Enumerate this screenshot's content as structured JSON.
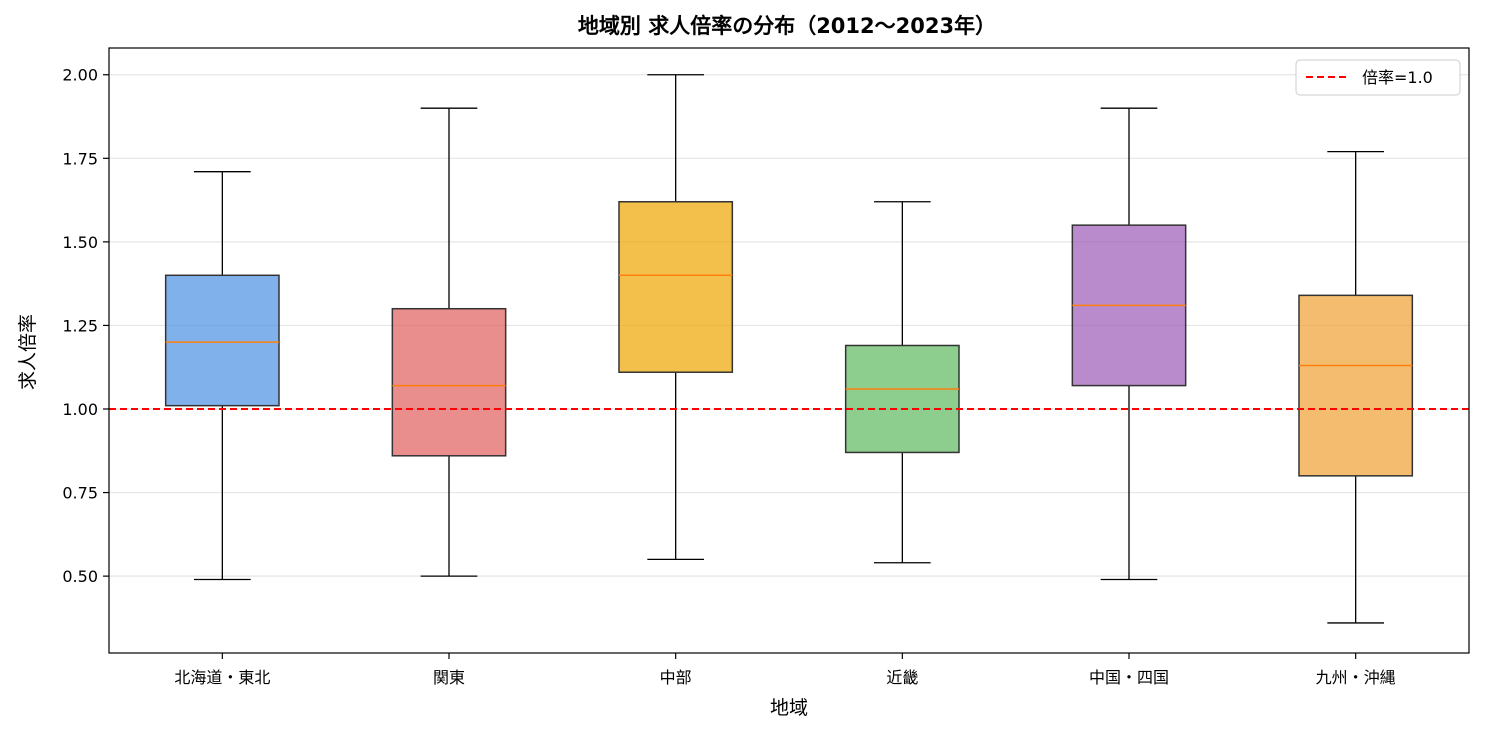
{
  "chart_data": {
    "type": "box",
    "title": "地域別 求人倍率の分布（2012〜2023年）",
    "xlabel": "地域",
    "ylabel": "求人倍率",
    "ylim": [
      0.27,
      2.08
    ],
    "yticks": [
      0.5,
      0.75,
      1.0,
      1.25,
      1.5,
      1.75,
      2.0
    ],
    "ytick_labels": [
      "0.50",
      "0.75",
      "1.00",
      "1.25",
      "1.50",
      "1.75",
      "2.00"
    ],
    "grid": "y",
    "legend_position": "top-right",
    "median_color": "#ff7f0e",
    "categories": [
      "北海道・東北",
      "関東",
      "中部",
      "近畿",
      "中国・四国",
      "九州・沖縄"
    ],
    "boxes": [
      {
        "whisker_low": 0.49,
        "q1": 1.01,
        "median": 1.2,
        "q3": 1.4,
        "whisker_high": 1.71,
        "color": "#4a90e2"
      },
      {
        "whisker_low": 0.5,
        "q1": 0.86,
        "median": 1.07,
        "q3": 1.3,
        "whisker_high": 1.9,
        "color": "#e05c5c"
      },
      {
        "whisker_low": 0.55,
        "q1": 1.11,
        "median": 1.4,
        "q3": 1.62,
        "whisker_high": 2.0,
        "color": "#f0a500"
      },
      {
        "whisker_low": 0.54,
        "q1": 0.87,
        "median": 1.06,
        "q3": 1.19,
        "whisker_high": 1.62,
        "color": "#5cb85c"
      },
      {
        "whisker_low": 0.49,
        "q1": 1.07,
        "median": 1.31,
        "q3": 1.55,
        "whisker_high": 1.9,
        "color": "#9b59b6"
      },
      {
        "whisker_low": 0.36,
        "q1": 0.8,
        "median": 1.13,
        "q3": 1.34,
        "whisker_high": 1.77,
        "color": "#f0a030"
      }
    ],
    "reference_line": {
      "y": 1.0,
      "label": "倍率=1.0",
      "color": "#ff0000",
      "style": "dashed"
    }
  }
}
